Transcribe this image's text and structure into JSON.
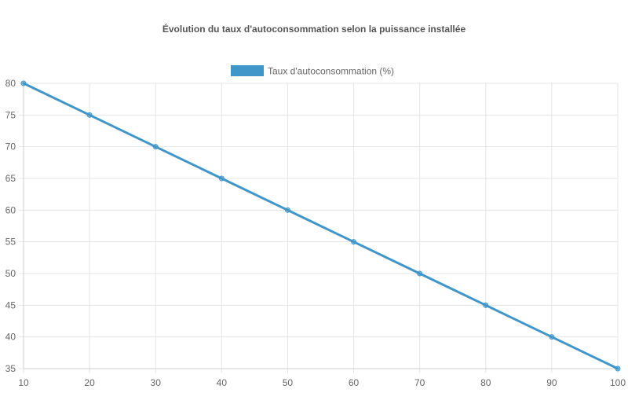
{
  "chart_data": {
    "type": "line",
    "title": "Évolution du taux d'autoconsommation selon la puissance installée",
    "xlabel": "",
    "ylabel": "",
    "x": [
      10,
      20,
      30,
      40,
      50,
      60,
      70,
      80,
      90,
      100
    ],
    "series": [
      {
        "name": "Taux d'autoconsommation (%)",
        "values": [
          80,
          75,
          70,
          65,
          60,
          55,
          50,
          45,
          40,
          35
        ],
        "color": "#4096c9"
      }
    ],
    "xlim": [
      10,
      100
    ],
    "ylim": [
      35,
      80
    ],
    "x_ticks": [
      "10",
      "20",
      "30",
      "40",
      "50",
      "60",
      "70",
      "80",
      "90",
      "100"
    ],
    "y_ticks": [
      "35",
      "40",
      "45",
      "50",
      "55",
      "60",
      "65",
      "70",
      "75",
      "80"
    ],
    "grid": true,
    "legend_position": "top-center"
  }
}
